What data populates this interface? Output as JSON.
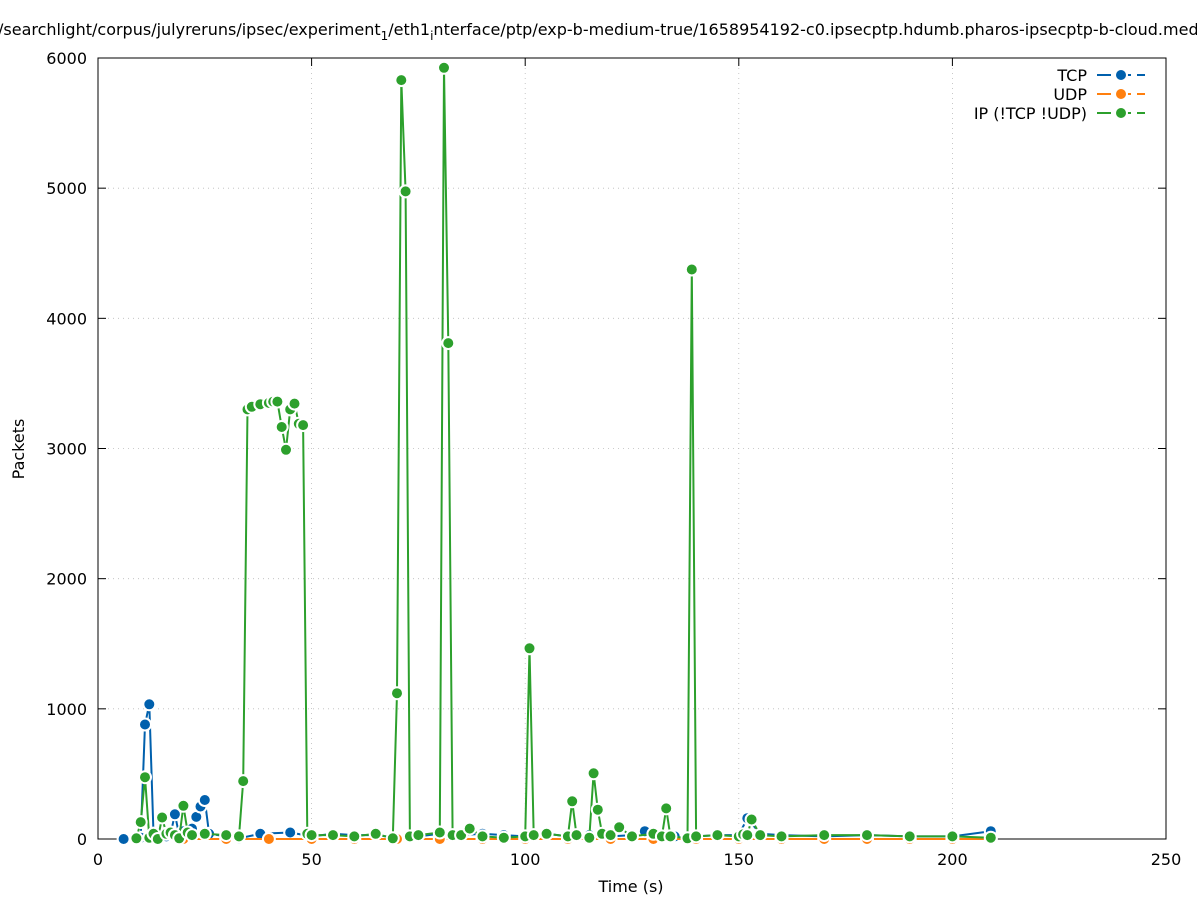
{
  "chart_data": {
    "type": "line",
    "title_main": "/searchlight/corpus/julyreruns/ipsec/experiment",
    "title_sub1": "1",
    "title_mid": "/eth1",
    "title_sub2": "i",
    "title_tail": "nterface/ptp/exp-b-medium-true/1658954192-c0.ipsecptp.hdumb.pharos-ipsecptp-b-cloud.med",
    "xlabel": "Time (s)",
    "ylabel": "Packets",
    "xlim": [
      0,
      250
    ],
    "ylim": [
      0,
      6000
    ],
    "xticks": [
      0,
      50,
      100,
      150,
      200,
      250
    ],
    "yticks": [
      0,
      1000,
      2000,
      3000,
      4000,
      5000,
      6000
    ],
    "grid": true,
    "legend_position": "top-right",
    "series": [
      {
        "name": "TCP",
        "color": "#0060ad",
        "points": [
          [
            6,
            0
          ],
          [
            9,
            5
          ],
          [
            10,
            10
          ],
          [
            11,
            880
          ],
          [
            12,
            1035
          ],
          [
            13,
            40
          ],
          [
            14,
            5
          ],
          [
            15,
            30
          ],
          [
            16,
            20
          ],
          [
            17,
            40
          ],
          [
            18,
            190
          ],
          [
            19,
            30
          ],
          [
            20,
            60
          ],
          [
            21,
            50
          ],
          [
            22,
            80
          ],
          [
            23,
            170
          ],
          [
            24,
            250
          ],
          [
            25,
            300
          ],
          [
            26,
            40
          ],
          [
            30,
            20
          ],
          [
            33,
            5
          ],
          [
            38,
            40
          ],
          [
            45,
            50
          ],
          [
            50,
            20
          ],
          [
            55,
            40
          ],
          [
            60,
            30
          ],
          [
            65,
            30
          ],
          [
            70,
            10
          ],
          [
            75,
            20
          ],
          [
            80,
            40
          ],
          [
            85,
            30
          ],
          [
            90,
            40
          ],
          [
            95,
            30
          ],
          [
            100,
            20
          ],
          [
            105,
            40
          ],
          [
            110,
            20
          ],
          [
            115,
            30
          ],
          [
            120,
            20
          ],
          [
            125,
            30
          ],
          [
            128,
            60
          ],
          [
            132,
            30
          ],
          [
            135,
            20
          ],
          [
            140,
            20
          ],
          [
            145,
            30
          ],
          [
            150,
            30
          ],
          [
            152,
            160
          ],
          [
            155,
            40
          ],
          [
            160,
            30
          ],
          [
            170,
            20
          ],
          [
            180,
            30
          ],
          [
            190,
            20
          ],
          [
            200,
            20
          ],
          [
            209,
            60
          ]
        ]
      },
      {
        "name": "UDP",
        "color": "#ff7f0e",
        "points": [
          [
            9,
            0
          ],
          [
            20,
            0
          ],
          [
            30,
            0
          ],
          [
            40,
            0
          ],
          [
            50,
            0
          ],
          [
            60,
            0
          ],
          [
            70,
            0
          ],
          [
            80,
            0
          ],
          [
            90,
            0
          ],
          [
            100,
            0
          ],
          [
            110,
            0
          ],
          [
            120,
            0
          ],
          [
            130,
            0
          ],
          [
            140,
            0
          ],
          [
            150,
            0
          ],
          [
            160,
            0
          ],
          [
            170,
            0
          ],
          [
            180,
            0
          ],
          [
            190,
            0
          ],
          [
            200,
            0
          ],
          [
            209,
            0
          ]
        ]
      },
      {
        "name": "IP (!TCP  !UDP)",
        "color": "#2ca02c",
        "points": [
          [
            9,
            5
          ],
          [
            10,
            130
          ],
          [
            11,
            475
          ],
          [
            12,
            10
          ],
          [
            13,
            40
          ],
          [
            14,
            0
          ],
          [
            15,
            165
          ],
          [
            16,
            40
          ],
          [
            17,
            50
          ],
          [
            18,
            30
          ],
          [
            19,
            5
          ],
          [
            20,
            255
          ],
          [
            21,
            50
          ],
          [
            22,
            30
          ],
          [
            25,
            40
          ],
          [
            30,
            30
          ],
          [
            33,
            20
          ],
          [
            34,
            445
          ],
          [
            35,
            3300
          ],
          [
            36,
            3320
          ],
          [
            38,
            3340
          ],
          [
            40,
            3350
          ],
          [
            41,
            3360
          ],
          [
            42,
            3360
          ],
          [
            43,
            3165
          ],
          [
            44,
            2990
          ],
          [
            45,
            3300
          ],
          [
            46,
            3345
          ],
          [
            47,
            3190
          ],
          [
            48,
            3180
          ],
          [
            49,
            40
          ],
          [
            50,
            30
          ],
          [
            55,
            30
          ],
          [
            60,
            20
          ],
          [
            65,
            40
          ],
          [
            69,
            5
          ],
          [
            70,
            1120
          ],
          [
            71,
            5830
          ],
          [
            72,
            4975
          ],
          [
            73,
            20
          ],
          [
            75,
            30
          ],
          [
            80,
            50
          ],
          [
            81,
            5925
          ],
          [
            82,
            3810
          ],
          [
            83,
            30
          ],
          [
            85,
            30
          ],
          [
            87,
            80
          ],
          [
            90,
            20
          ],
          [
            95,
            10
          ],
          [
            100,
            20
          ],
          [
            101,
            1465
          ],
          [
            102,
            30
          ],
          [
            105,
            40
          ],
          [
            110,
            20
          ],
          [
            111,
            290
          ],
          [
            112,
            30
          ],
          [
            115,
            10
          ],
          [
            116,
            505
          ],
          [
            117,
            225
          ],
          [
            118,
            40
          ],
          [
            120,
            30
          ],
          [
            122,
            90
          ],
          [
            125,
            20
          ],
          [
            130,
            40
          ],
          [
            132,
            20
          ],
          [
            133,
            235
          ],
          [
            134,
            20
          ],
          [
            138,
            5
          ],
          [
            139,
            4375
          ],
          [
            140,
            20
          ],
          [
            145,
            30
          ],
          [
            150,
            20
          ],
          [
            151,
            35
          ],
          [
            152,
            30
          ],
          [
            153,
            150
          ],
          [
            155,
            30
          ],
          [
            160,
            20
          ],
          [
            170,
            30
          ],
          [
            180,
            30
          ],
          [
            190,
            20
          ],
          [
            200,
            20
          ],
          [
            209,
            10
          ]
        ]
      }
    ]
  }
}
